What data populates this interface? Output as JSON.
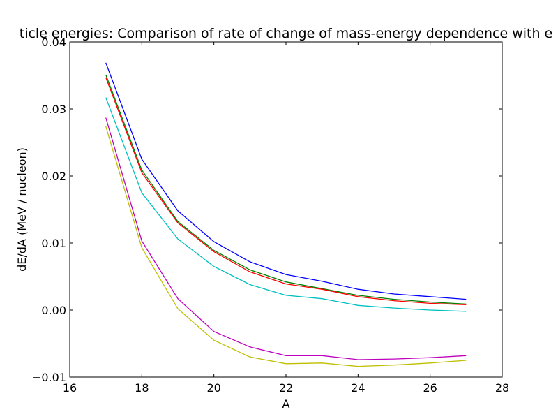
{
  "chart_data": {
    "type": "line",
    "title": "ticle energies: Comparison of rate of change of mass-energy dependence with e",
    "xlabel": "A",
    "ylabel": "dE/dA (MeV / nucleon)",
    "xlim": [
      16,
      28
    ],
    "ylim": [
      -0.01,
      0.04
    ],
    "xticks": [
      16,
      18,
      20,
      22,
      24,
      26,
      28
    ],
    "xtick_labels": [
      "16",
      "18",
      "20",
      "22",
      "24",
      "26",
      "28"
    ],
    "yticks": [
      -0.01,
      0.0,
      0.01,
      0.02,
      0.03,
      0.04
    ],
    "ytick_labels": [
      "−0.01",
      "0.00",
      "0.01",
      "0.02",
      "0.03",
      "0.04"
    ],
    "grid": false,
    "legend": false,
    "x": [
      17,
      18,
      19,
      20,
      21,
      22,
      23,
      24,
      25,
      26,
      27
    ],
    "series": [
      {
        "color": "#0000ff",
        "values": [
          0.0369,
          0.0225,
          0.0148,
          0.0102,
          0.0072,
          0.0053,
          0.0043,
          0.0031,
          0.0024,
          0.002,
          0.0016
        ]
      },
      {
        "color": "#008000",
        "values": [
          0.0351,
          0.0209,
          0.0132,
          0.0089,
          0.006,
          0.0042,
          0.0032,
          0.0022,
          0.0016,
          0.0012,
          0.0009
        ]
      },
      {
        "color": "#ff0000",
        "values": [
          0.0347,
          0.0205,
          0.013,
          0.0087,
          0.0057,
          0.0039,
          0.0031,
          0.002,
          0.0014,
          0.001,
          0.0008
        ]
      },
      {
        "color": "#00bfbf",
        "values": [
          0.0317,
          0.0175,
          0.0106,
          0.0065,
          0.0038,
          0.0022,
          0.0017,
          0.0007,
          0.0003,
          0.0,
          -0.0002
        ]
      },
      {
        "color": "#bf00bf",
        "values": [
          0.0287,
          0.0103,
          0.0017,
          -0.0032,
          -0.0055,
          -0.0068,
          -0.0068,
          -0.0074,
          -0.0073,
          -0.0071,
          -0.0068
        ]
      },
      {
        "color": "#bfbf00",
        "values": [
          0.0274,
          0.0093,
          0.0002,
          -0.0045,
          -0.007,
          -0.008,
          -0.0079,
          -0.0084,
          -0.0082,
          -0.0079,
          -0.0075
        ]
      }
    ]
  }
}
